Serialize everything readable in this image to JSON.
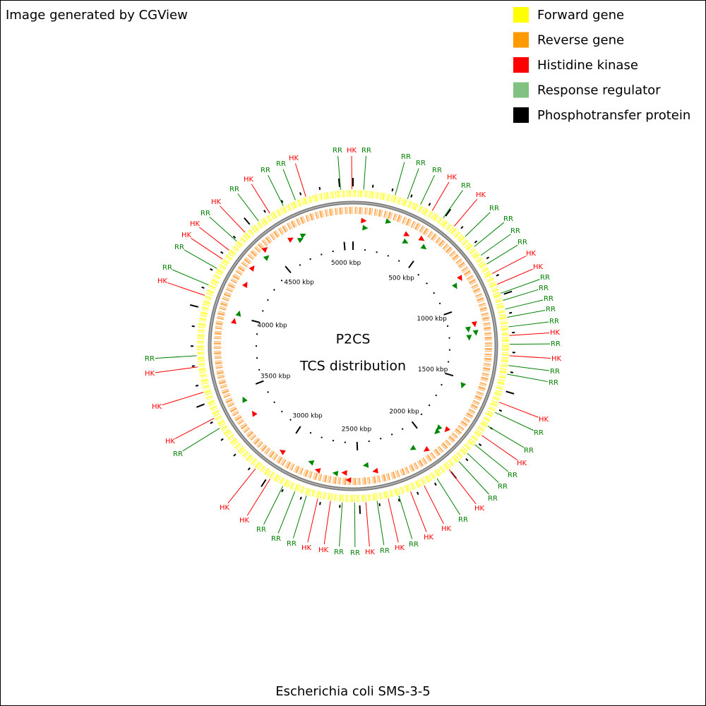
{
  "header": {
    "title": "Image generated by CGView"
  },
  "legend": [
    {
      "label": "Forward gene",
      "color": "#ffff00"
    },
    {
      "label": "Reverse gene",
      "color": "#ff9900"
    },
    {
      "label": "Histidine kinase",
      "color": "#ff0000"
    },
    {
      "label": "Response regulator",
      "color": "#80c080"
    },
    {
      "label": "Phosphotransfer protein",
      "color": "#000000"
    }
  ],
  "center": {
    "title": "P2CS",
    "subtitle": "TCS distribution"
  },
  "ticks": [
    "500 kbp",
    "1000 kbp",
    "1500 kbp",
    "2000 kbp",
    "2500 kbp",
    "3000 kbp",
    "3500 kbp",
    "4000 kbp",
    "4500 kbp",
    "5000 kbp"
  ],
  "labels": [
    {
      "text": "RR",
      "color": "#008000"
    },
    {
      "text": "HK",
      "color": "#ff0000"
    },
    {
      "text": "RR",
      "color": "#008000"
    },
    {
      "text": "RR",
      "color": "#008000"
    },
    {
      "text": "RR",
      "color": "#008000"
    },
    {
      "text": "RR",
      "color": "#008000"
    },
    {
      "text": "HK",
      "color": "#ff0000"
    },
    {
      "text": "RR",
      "color": "#008000"
    },
    {
      "text": "HK",
      "color": "#ff0000"
    },
    {
      "text": "RR",
      "color": "#008000"
    },
    {
      "text": "RR",
      "color": "#008000"
    },
    {
      "text": "RR",
      "color": "#008000"
    },
    {
      "text": "RR",
      "color": "#008000"
    },
    {
      "text": "HK",
      "color": "#ff0000"
    },
    {
      "text": "HK",
      "color": "#ff0000"
    },
    {
      "text": "RR",
      "color": "#008000"
    },
    {
      "text": "RR",
      "color": "#008000"
    },
    {
      "text": "RR",
      "color": "#008000"
    },
    {
      "text": "RR",
      "color": "#008000"
    },
    {
      "text": "RR",
      "color": "#008000"
    },
    {
      "text": "HK",
      "color": "#ff0000"
    },
    {
      "text": "RR",
      "color": "#008000"
    },
    {
      "text": "HK",
      "color": "#ff0000"
    },
    {
      "text": "RR",
      "color": "#008000"
    },
    {
      "text": "RR",
      "color": "#008000"
    },
    {
      "text": "HK",
      "color": "#ff0000"
    },
    {
      "text": "RR",
      "color": "#008000"
    },
    {
      "text": "RR",
      "color": "#008000"
    },
    {
      "text": "HK",
      "color": "#ff0000"
    },
    {
      "text": "RR",
      "color": "#008000"
    },
    {
      "text": "RR",
      "color": "#008000"
    },
    {
      "text": "RR",
      "color": "#008000"
    },
    {
      "text": "HK",
      "color": "#ff0000"
    },
    {
      "text": "RR",
      "color": "#008000"
    },
    {
      "text": "HK",
      "color": "#ff0000"
    },
    {
      "text": "HK",
      "color": "#ff0000"
    },
    {
      "text": "RR",
      "color": "#008000"
    },
    {
      "text": "HK",
      "color": "#ff0000"
    },
    {
      "text": "RR",
      "color": "#008000"
    },
    {
      "text": "HK",
      "color": "#ff0000"
    },
    {
      "text": "RR",
      "color": "#008000"
    },
    {
      "text": "RR",
      "color": "#008000"
    },
    {
      "text": "HK",
      "color": "#ff0000"
    },
    {
      "text": "HK",
      "color": "#ff0000"
    },
    {
      "text": "RR",
      "color": "#008000"
    },
    {
      "text": "RR",
      "color": "#008000"
    },
    {
      "text": "RR",
      "color": "#008000"
    },
    {
      "text": "HK",
      "color": "#ff0000"
    },
    {
      "text": "HK",
      "color": "#ff0000"
    },
    {
      "text": "RR",
      "color": "#008000"
    },
    {
      "text": "HK",
      "color": "#ff0000"
    },
    {
      "text": "HK",
      "color": "#ff0000"
    },
    {
      "text": "HK",
      "color": "#ff0000"
    },
    {
      "text": "RR",
      "color": "#008000"
    },
    {
      "text": "HK",
      "color": "#ff0000"
    },
    {
      "text": "RR",
      "color": "#008000"
    },
    {
      "text": "RR",
      "color": "#008000"
    },
    {
      "text": "HK",
      "color": "#ff0000"
    },
    {
      "text": "HK",
      "color": "#ff0000"
    },
    {
      "text": "RR",
      "color": "#008000"
    },
    {
      "text": "HK",
      "color": "#ff0000"
    },
    {
      "text": "RR",
      "color": "#008000"
    },
    {
      "text": "HK",
      "color": "#ff0000"
    },
    {
      "text": "RR",
      "color": "#008000"
    },
    {
      "text": "RR",
      "color": "#008000"
    },
    {
      "text": "HK",
      "color": "#ff0000"
    }
  ],
  "footer": {
    "title": "Escherichia coli SMS-3-5"
  }
}
